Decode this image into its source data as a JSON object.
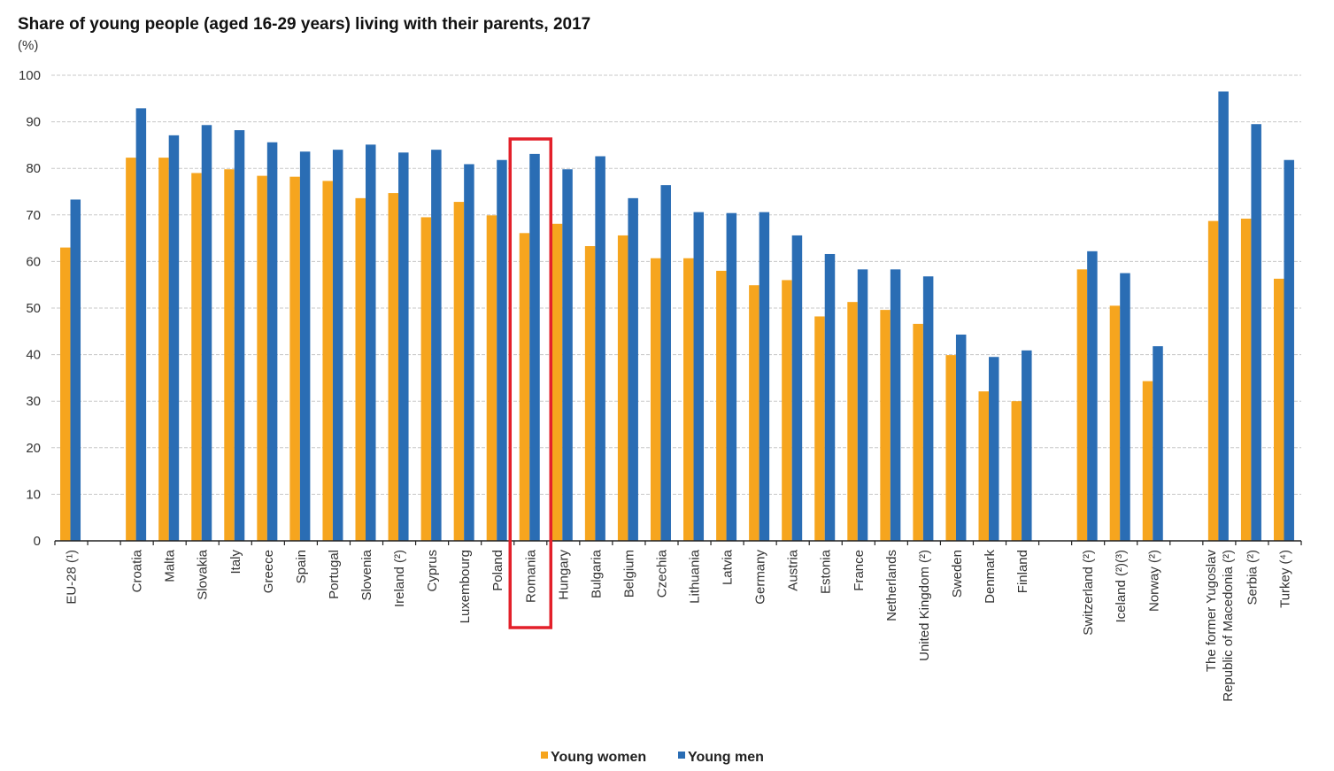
{
  "chart_data": {
    "type": "bar",
    "title": "Share of young people (aged 16-29 years) living with their parents, 2017",
    "unit_label": "(%)",
    "xlabel": "",
    "ylabel": "(%)",
    "ylim": [
      0,
      100
    ],
    "yticks": [
      0,
      10,
      20,
      30,
      40,
      50,
      60,
      70,
      80,
      90,
      100
    ],
    "grid": true,
    "legend_position": "bottom-center",
    "highlight": {
      "category": "Romania",
      "color": "#e3202a"
    },
    "groups": [
      {
        "start": 0,
        "end": 0
      },
      {
        "start": 1,
        "end": 28
      },
      {
        "start": 29,
        "end": 31
      },
      {
        "start": 32,
        "end": 34
      }
    ],
    "categories": [
      "EU-28 (¹)",
      "Croatia",
      "Malta",
      "Slovakia",
      "Italy",
      "Greece",
      "Spain",
      "Portugal",
      "Slovenia",
      "Ireland (²)",
      "Cyprus",
      "Luxembourg",
      "Poland",
      "Romania",
      "Hungary",
      "Bulgaria",
      "Belgium",
      "Czechia",
      "Lithuania",
      "Latvia",
      "Germany",
      "Austria",
      "Estonia",
      "France",
      "Netherlands",
      "United Kingdom (²)",
      "Sweden",
      "Denmark",
      "Finland",
      "Switzerland (²)",
      "Iceland (²)(³)",
      "Norway (²)",
      "The former Yugoslav|Republic of Macedonia (²)",
      "Serbia (²)",
      "Turkey (⁴)"
    ],
    "series": [
      {
        "name": "Young women",
        "color": "#f6a51e",
        "values": [
          63.0,
          82.3,
          82.3,
          79.0,
          79.8,
          78.4,
          78.2,
          77.3,
          73.6,
          74.7,
          69.5,
          72.8,
          69.9,
          66.1,
          68.1,
          63.3,
          65.6,
          60.7,
          60.7,
          58.0,
          54.9,
          56.0,
          48.2,
          51.3,
          49.6,
          46.6,
          39.9,
          32.1,
          30.0,
          58.3,
          50.5,
          34.3,
          68.7,
          69.2,
          56.3
        ]
      },
      {
        "name": "Young men",
        "color": "#2a6db4",
        "values": [
          73.3,
          92.9,
          87.1,
          89.3,
          88.2,
          85.6,
          83.6,
          84.0,
          85.1,
          83.4,
          84.0,
          80.9,
          81.8,
          83.1,
          79.8,
          82.6,
          73.6,
          76.4,
          70.6,
          70.4,
          70.6,
          65.6,
          61.6,
          58.3,
          58.3,
          56.8,
          44.3,
          39.5,
          40.9,
          62.2,
          57.5,
          41.8,
          96.5,
          89.5,
          81.8
        ]
      }
    ]
  }
}
